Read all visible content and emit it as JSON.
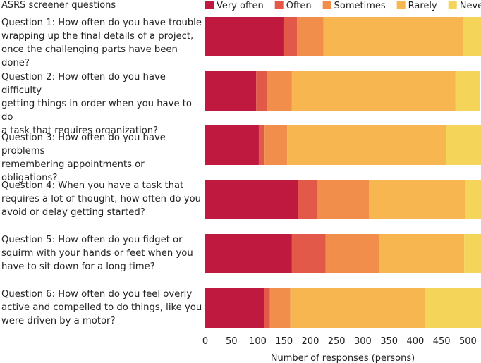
{
  "chart_data": {
    "type": "bar",
    "orientation": "horizontal",
    "stacked": true,
    "title": "ASRS screener questions",
    "xlabel": "Number of responses (persons)",
    "ylabel": "",
    "xlim": [
      0,
      525
    ],
    "xticks": [
      0,
      50,
      100,
      150,
      200,
      250,
      300,
      350,
      400,
      450,
      500
    ],
    "legend_position": "top-right",
    "categories": [
      [
        "Question 1: How often do you have trouble",
        "wrapping up the final details of a project,",
        "once the challenging parts have been done?"
      ],
      [
        "Question 2: How often do you have difficulty",
        "getting things in order when you have to do",
        "a task that requires organization?"
      ],
      [
        "Question 3: How often do you have problems",
        "remembering appointments or obligations?"
      ],
      [
        "Question 4: When you have a task that",
        "requires a lot of thought, how often do you",
        "avoid or delay getting started?"
      ],
      [
        "Question 5: How often do you fidget or",
        "squirm with your hands or feet when you",
        "have to sit down for a long time?"
      ],
      [
        "Question 6: How often do you feel overly",
        "active and compelled to do things, like you",
        "were driven by a motor?"
      ]
    ],
    "series": [
      {
        "name": "Very often",
        "color": "#c0193f",
        "values": [
          149,
          97,
          102,
          176,
          165,
          112
        ]
      },
      {
        "name": "Often",
        "color": "#e2594a",
        "values": [
          26,
          20,
          11,
          38,
          64,
          11
        ]
      },
      {
        "name": "Sometimes",
        "color": "#f28e4b",
        "values": [
          50,
          48,
          43,
          98,
          102,
          39
        ]
      },
      {
        "name": "Rarely",
        "color": "#f8b650",
        "values": [
          266,
          311,
          302,
          183,
          162,
          256
        ]
      },
      {
        "name": "Never",
        "color": "#f5d45a",
        "values": [
          34,
          47,
          67,
          30,
          32,
          107
        ]
      }
    ]
  }
}
